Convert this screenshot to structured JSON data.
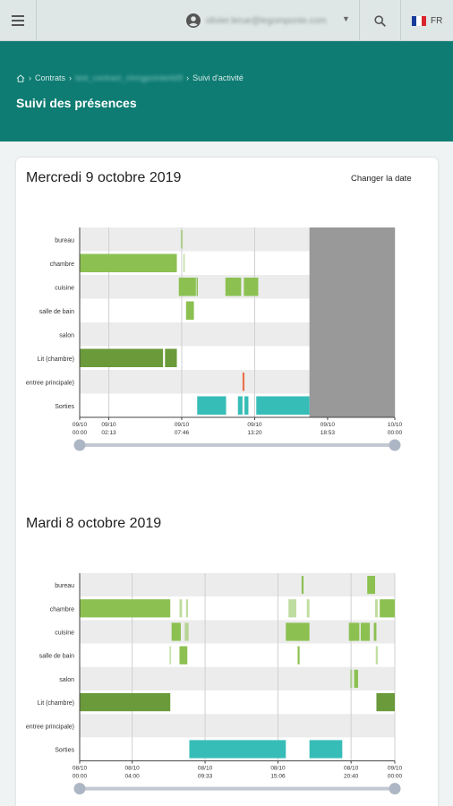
{
  "topbar": {
    "menu_icon": "hamburger-menu-icon",
    "user_email": "olivier.lerue@legomponte.com",
    "account_icon": "account-circle-icon",
    "search_icon": "search-icon",
    "language": "FR",
    "flag_colors": [
      "#1a3d9c",
      "#ffffff",
      "#d8262c"
    ]
  },
  "breadcrumb": {
    "home_icon": "home-icon",
    "items": [
      "Contrats",
      "test_contract_chmgpointerkit9",
      "Suivi d'activité"
    ]
  },
  "page_title": "Suivi des présences",
  "change_date_label": "Changer la date",
  "colors": {
    "light": "#8cc152",
    "dark": "#6a9a3a",
    "teal": "#37bdb7",
    "door": "#e8734e",
    "future": "#999999",
    "stripe": "#ececec",
    "slider": "#c3c9d3",
    "knob": "#adb6c4"
  },
  "days": [
    {
      "title": "Mercredi 9 octobre 2019",
      "rows": [
        "bureau",
        "chambre",
        "cuisine",
        "salle de bain",
        "salon",
        "Lit (chambre)",
        "entree principale)",
        "Sorties"
      ],
      "ticks": [
        {
          "top": "09/10",
          "bottom": "00:00",
          "h": 0
        },
        {
          "top": "09/10",
          "bottom": "02:13",
          "h": 2.22
        },
        {
          "top": "09/10",
          "bottom": "07:46",
          "h": 7.77
        },
        {
          "top": "09/10",
          "bottom": "13:20",
          "h": 13.33
        },
        {
          "top": "09/10",
          "bottom": "18:53",
          "h": 18.88
        },
        {
          "top": "10/10",
          "bottom": "00:00",
          "h": 24
        }
      ],
      "future_from": 17.5,
      "chart_data": {
        "type": "timeline",
        "x_unit": "hours",
        "x_range": [
          0,
          24
        ],
        "segments": [
          {
            "row": 0,
            "start": 7.7,
            "end": 7.85,
            "color": "light",
            "faint": true
          },
          {
            "row": 1,
            "start": 0,
            "end": 7.4,
            "color": "light"
          },
          {
            "row": 1,
            "start": 7.9,
            "end": 8.0,
            "color": "light",
            "faint": true
          },
          {
            "row": 2,
            "start": 7.55,
            "end": 8.85,
            "color": "light"
          },
          {
            "row": 2,
            "start": 8.9,
            "end": 9.0,
            "color": "light"
          },
          {
            "row": 2,
            "start": 11.1,
            "end": 12.3,
            "color": "light"
          },
          {
            "row": 2,
            "start": 12.5,
            "end": 13.6,
            "color": "light"
          },
          {
            "row": 3,
            "start": 8.1,
            "end": 8.7,
            "color": "light"
          },
          {
            "row": 5,
            "start": 0,
            "end": 6.35,
            "color": "dark"
          },
          {
            "row": 5,
            "start": 6.5,
            "end": 7.4,
            "color": "dark"
          },
          {
            "row": 6,
            "start": 12.4,
            "end": 12.55,
            "color": "door"
          },
          {
            "row": 7,
            "start": 8.95,
            "end": 11.15,
            "color": "teal"
          },
          {
            "row": 7,
            "start": 12.05,
            "end": 12.4,
            "color": "teal"
          },
          {
            "row": 7,
            "start": 12.55,
            "end": 12.85,
            "color": "teal"
          },
          {
            "row": 7,
            "start": 13.45,
            "end": 17.5,
            "color": "teal"
          }
        ]
      }
    },
    {
      "title": "Mardi 8 octobre 2019",
      "rows": [
        "bureau",
        "chambre",
        "cuisine",
        "salle de bain",
        "salon",
        "Lit (chambre)",
        "entree principale)",
        "Sorties"
      ],
      "ticks": [
        {
          "top": "08/10",
          "bottom": "00:00",
          "h": 0
        },
        {
          "top": "08/10",
          "bottom": "04:00",
          "h": 4.0
        },
        {
          "top": "08/10",
          "bottom": "09:33",
          "h": 9.55
        },
        {
          "top": "08/10",
          "bottom": "15:06",
          "h": 15.1
        },
        {
          "top": "08/10",
          "bottom": "20:40",
          "h": 20.67
        },
        {
          "top": "09/10",
          "bottom": "00:00",
          "h": 24
        }
      ],
      "future_from": null,
      "chart_data": {
        "type": "timeline",
        "x_unit": "hours",
        "x_range": [
          0,
          24
        ],
        "segments": [
          {
            "row": 0,
            "start": 16.9,
            "end": 17.05,
            "color": "light"
          },
          {
            "row": 0,
            "start": 21.9,
            "end": 22.5,
            "color": "light"
          },
          {
            "row": 1,
            "start": 0,
            "end": 6.9,
            "color": "light"
          },
          {
            "row": 1,
            "start": 7.6,
            "end": 7.8,
            "color": "light",
            "faint": true
          },
          {
            "row": 1,
            "start": 8.1,
            "end": 8.25,
            "color": "light",
            "faint": true
          },
          {
            "row": 1,
            "start": 15.9,
            "end": 16.5,
            "color": "light",
            "faint": true
          },
          {
            "row": 1,
            "start": 17.3,
            "end": 17.5,
            "color": "light",
            "faint": true
          },
          {
            "row": 1,
            "start": 22.5,
            "end": 22.7,
            "color": "light",
            "faint": true
          },
          {
            "row": 1,
            "start": 22.85,
            "end": 24,
            "color": "light"
          },
          {
            "row": 2,
            "start": 7.0,
            "end": 7.7,
            "color": "light"
          },
          {
            "row": 2,
            "start": 8.0,
            "end": 8.3,
            "color": "light",
            "faint": true
          },
          {
            "row": 2,
            "start": 15.7,
            "end": 17.5,
            "color": "light"
          },
          {
            "row": 2,
            "start": 20.5,
            "end": 21.3,
            "color": "light"
          },
          {
            "row": 2,
            "start": 21.4,
            "end": 22.1,
            "color": "light"
          },
          {
            "row": 2,
            "start": 22.4,
            "end": 22.6,
            "color": "light"
          },
          {
            "row": 3,
            "start": 6.85,
            "end": 6.95,
            "color": "light",
            "faint": true
          },
          {
            "row": 3,
            "start": 7.6,
            "end": 8.2,
            "color": "light"
          },
          {
            "row": 3,
            "start": 16.6,
            "end": 16.75,
            "color": "light"
          },
          {
            "row": 3,
            "start": 22.55,
            "end": 22.7,
            "color": "light",
            "faint": true
          },
          {
            "row": 4,
            "start": 20.6,
            "end": 20.75,
            "color": "light",
            "faint": true
          },
          {
            "row": 4,
            "start": 20.9,
            "end": 21.2,
            "color": "light"
          },
          {
            "row": 5,
            "start": 0,
            "end": 6.9,
            "color": "dark"
          },
          {
            "row": 5,
            "start": 22.6,
            "end": 24,
            "color": "dark"
          },
          {
            "row": 7,
            "start": 8.35,
            "end": 15.7,
            "color": "teal"
          },
          {
            "row": 7,
            "start": 17.5,
            "end": 20.0,
            "color": "teal"
          }
        ]
      }
    }
  ]
}
